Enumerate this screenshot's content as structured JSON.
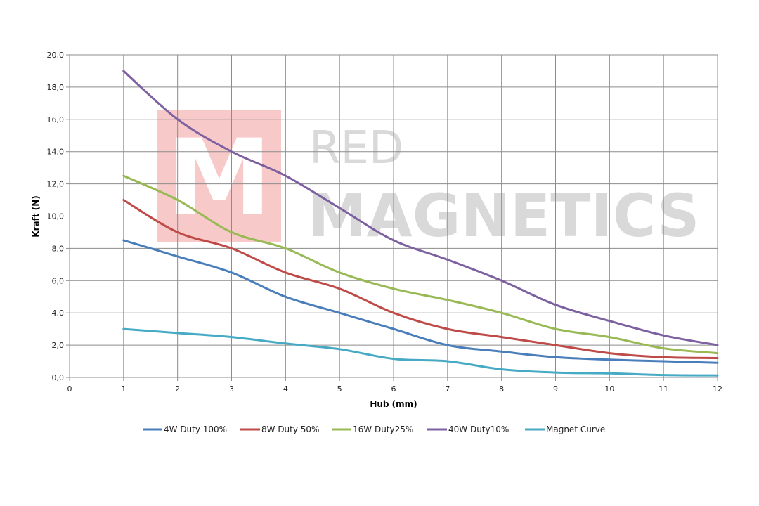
{
  "watermark": {
    "logo_letter": "M",
    "word1": "RED",
    "word2": "MAGNETICS",
    "logo_color": "#f7c9c9"
  },
  "chart_data": {
    "type": "line",
    "xlabel": "Hub (mm)",
    "ylabel": "Kraft (N)",
    "xlim": [
      0,
      12
    ],
    "ylim": [
      0,
      20
    ],
    "x_ticks": [
      "0",
      "1",
      "2",
      "3",
      "4",
      "5",
      "6",
      "7",
      "8",
      "9",
      "10",
      "11",
      "12"
    ],
    "y_ticks": [
      "0,0",
      "2,0",
      "4,0",
      "6,0",
      "8,0",
      "10,0",
      "12,0",
      "14,0",
      "16,0",
      "18,0",
      "20,0"
    ],
    "grid": true,
    "legend_position": "bottom",
    "x": [
      1,
      2,
      3,
      4,
      5,
      6,
      7,
      8,
      9,
      10,
      11,
      12
    ],
    "series": [
      {
        "name": "4W Duty 100%",
        "color": "#4a7ebb",
        "values": [
          8.5,
          7.5,
          6.5,
          5.0,
          4.0,
          3.0,
          2.0,
          1.6,
          1.25,
          1.1,
          1.0,
          0.9
        ]
      },
      {
        "name": "8W Duty 50%",
        "color": "#be4b48",
        "values": [
          11.0,
          9.0,
          8.0,
          6.5,
          5.5,
          4.0,
          3.0,
          2.5,
          2.0,
          1.5,
          1.25,
          1.2
        ]
      },
      {
        "name": "16W Duty25%",
        "color": "#98b954",
        "values": [
          12.5,
          11.0,
          9.0,
          8.0,
          6.5,
          5.5,
          4.8,
          4.0,
          3.0,
          2.5,
          1.8,
          1.5
        ]
      },
      {
        "name": "40W Duty10%",
        "color": "#7d60a0",
        "values": [
          19.0,
          16.0,
          14.0,
          12.5,
          10.5,
          8.5,
          7.3,
          6.0,
          4.5,
          3.5,
          2.6,
          2.0
        ]
      },
      {
        "name": "Magnet Curve",
        "color": "#46aac5",
        "values": [
          3.0,
          2.75,
          2.5,
          2.1,
          1.75,
          1.15,
          1.0,
          0.5,
          0.3,
          0.25,
          0.15,
          0.12
        ]
      }
    ]
  }
}
